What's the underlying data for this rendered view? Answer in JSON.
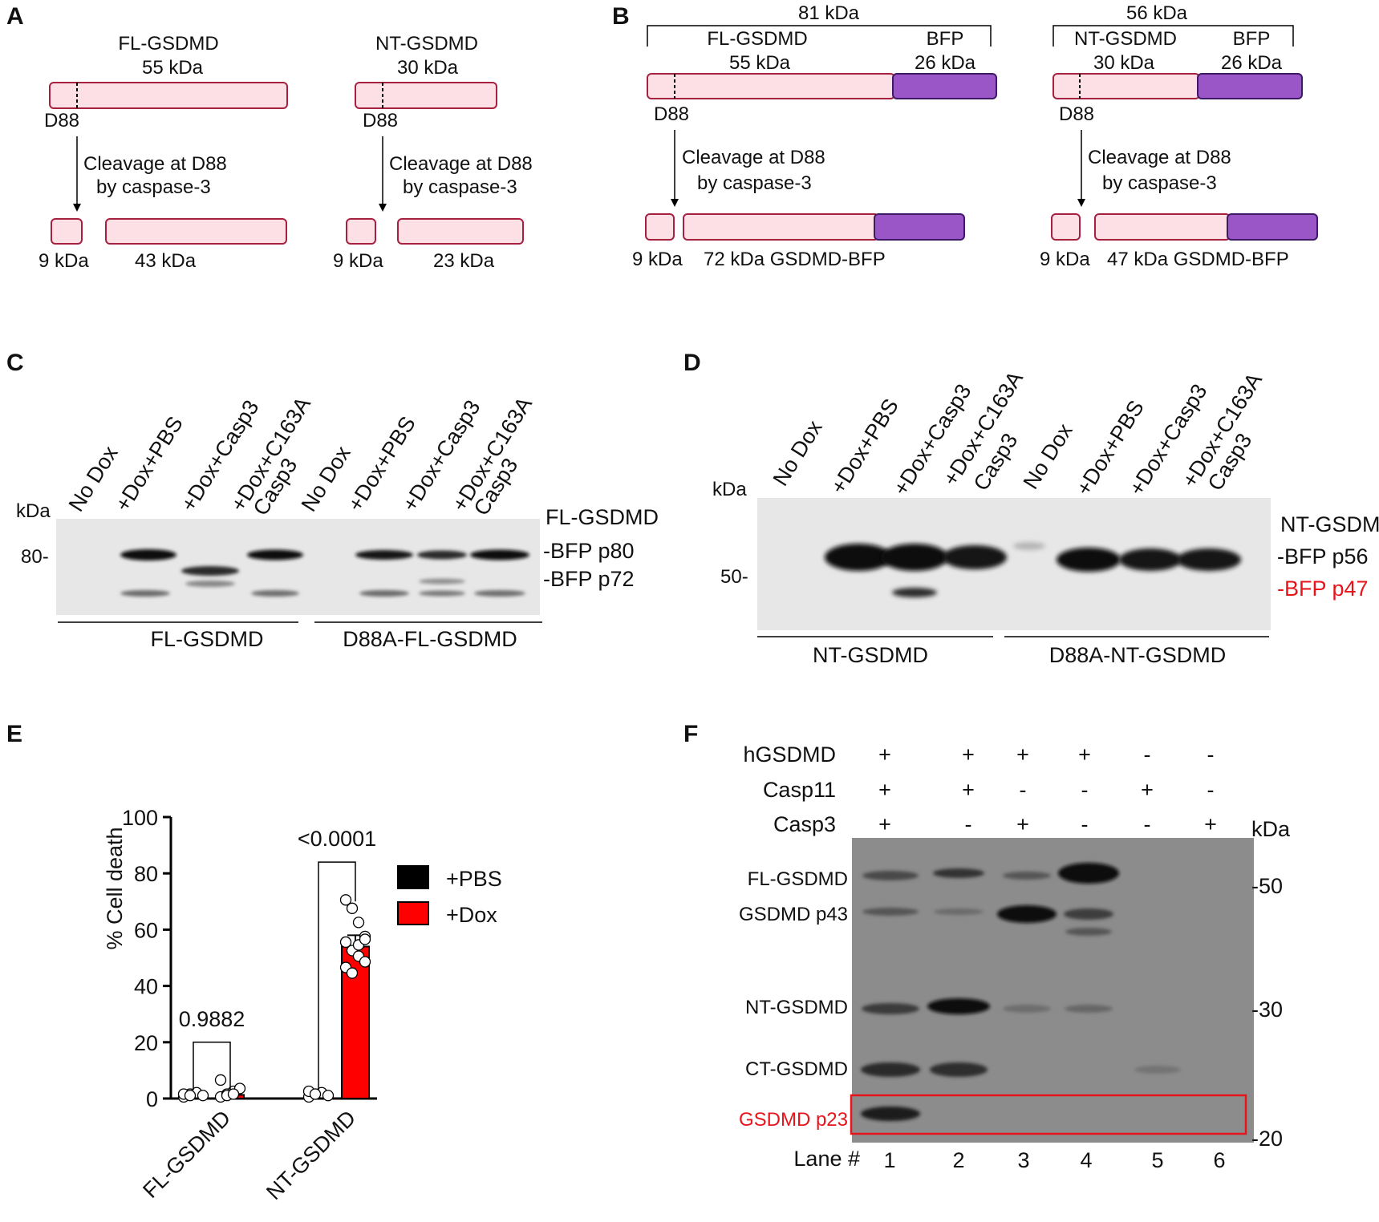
{
  "panel_a": {
    "label": "A",
    "fl": {
      "name": "FL-GSDMD",
      "mass": "55 kDa",
      "site": "D88",
      "frag_small": "9 kDa",
      "frag_large": "43 kDa"
    },
    "nt": {
      "name": "NT-GSDMD",
      "mass": "30 kDa",
      "site": "D88",
      "frag_small": "9 kDa",
      "frag_large": "23 kDa"
    },
    "cleavage_l1": "Cleavage at D88",
    "cleavage_l2": "by caspase-3"
  },
  "panel_b": {
    "label": "B",
    "fl": {
      "total": "81 kDa",
      "name": "FL-GSDMD",
      "mass": "55 kDa",
      "tag": "BFP",
      "tag_mass": "26 kDa",
      "site": "D88",
      "frag_small": "9 kDa",
      "frag_large": "72 kDa GSDMD-BFP"
    },
    "nt": {
      "total": "56 kDa",
      "name": "NT-GSDMD",
      "mass": "30 kDa",
      "tag": "BFP",
      "tag_mass": "26 kDa",
      "site": "D88",
      "frag_small": "9 kDa",
      "frag_large": "47 kDa GSDMD-BFP"
    },
    "cleavage_l1": "Cleavage at D88",
    "cleavage_l2": "by caspase-3"
  },
  "panel_c": {
    "label": "C",
    "kda": "kDa",
    "marker": "80-",
    "lanes": [
      "No Dox",
      "+Dox+PBS",
      "+Dox+Casp3",
      "+Dox+C163A",
      "Casp3",
      "No Dox",
      "+Dox+PBS",
      "+Dox+Casp3",
      "+Dox+C163A",
      "Casp3"
    ],
    "right_l1": "FL-GSDMD",
    "right_l2": "-BFP p80",
    "right_l3": "-BFP p72",
    "group1": "FL-GSDMD",
    "group2": "D88A-FL-GSDMD"
  },
  "panel_d": {
    "label": "D",
    "kda": "kDa",
    "marker": "50-",
    "lanes": [
      "No Dox",
      "+Dox+PBS",
      "+Dox+Casp3",
      "+Dox+C163A",
      "Casp3",
      "No Dox",
      "+Dox+PBS",
      "+Dox+Casp3",
      "+Dox+C163A",
      "Casp3"
    ],
    "right_l1": "NT-GSDMD",
    "right_l2": "-BFP p56",
    "right_l3": "-BFP p47",
    "group1": "NT-GSDMD",
    "group2": "D88A-NT-GSDMD",
    "highlight_color": "#e8141b"
  },
  "panel_e": {
    "label": "E"
  },
  "chart_data": {
    "type": "bar",
    "ylabel": "% Cell death",
    "ylim": [
      0,
      100
    ],
    "yticks": [
      "0",
      "20",
      "40",
      "60",
      "80",
      "100"
    ],
    "categories": [
      "FL-GSDMD",
      "NT-GSDMD"
    ],
    "series": [
      {
        "name": "+PBS",
        "color": "#000000",
        "values": [
          0.8,
          0.9
        ]
      },
      {
        "name": "+Dox",
        "color": "#ff0000",
        "values": [
          1.3,
          54
        ]
      }
    ],
    "error_sd": [
      [
        0.6,
        0.8
      ],
      [
        2,
        4
      ]
    ],
    "points": [
      [
        [
          0,
          1,
          1.5,
          0.5,
          1,
          0.5
        ],
        [
          0,
          1,
          2,
          3,
          6,
          0.5,
          1
        ]
      ],
      [
        [
          0,
          1,
          1.5,
          0.5,
          2,
          1
        ],
        [
          70,
          67,
          62,
          57,
          55,
          52,
          50,
          48,
          46,
          44,
          54,
          56
        ]
      ]
    ],
    "pvalues": [
      "0.9882",
      "<0.0001"
    ],
    "legend": "right"
  },
  "panel_f": {
    "label": "F",
    "rows": [
      {
        "name": "hGSDMD",
        "signs": [
          "+",
          "+",
          "+",
          "+",
          "-",
          "-"
        ]
      },
      {
        "name": "Casp11",
        "signs": [
          "+",
          "+",
          "-",
          "-",
          "+",
          "-"
        ]
      },
      {
        "name": "Casp3",
        "signs": [
          "+",
          "-",
          "+",
          "-",
          "-",
          "+"
        ]
      }
    ],
    "kda": "kDa",
    "bands": [
      "FL-GSDMD",
      "GSDMD p43",
      "NT-GSDMD",
      "CT-GSDMD",
      "GSDMD p23"
    ],
    "markers": [
      "-50",
      "-30",
      "-20"
    ],
    "lane_label": "Lane #",
    "lane_numbers": [
      "1",
      "2",
      "3",
      "4",
      "5",
      "6"
    ],
    "highlight_color": "#e8141b"
  }
}
